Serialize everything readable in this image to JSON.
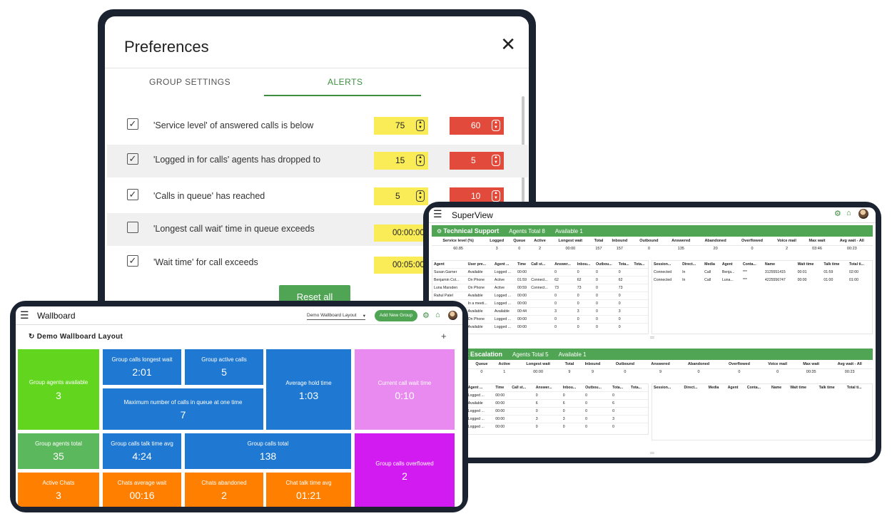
{
  "preferences": {
    "title": "Preferences",
    "close_glyph": "✕",
    "tabs": [
      {
        "label": "GROUP SETTINGS"
      },
      {
        "label": "ALERTS"
      }
    ],
    "alerts": [
      {
        "label": "'Service level' of answered calls is below",
        "checked": true,
        "warn": "75",
        "crit": "60"
      },
      {
        "label": "'Logged in for calls' agents has dropped to",
        "checked": true,
        "warn": "15",
        "crit": "5"
      },
      {
        "label": "'Calls in queue' has reached",
        "checked": true,
        "warn": "5",
        "crit": "10"
      },
      {
        "label": "'Longest call wait' time in queue exceeds",
        "checked": false,
        "warn": "00:00:00"
      },
      {
        "label": "'Wait time' for call exceeds",
        "checked": true,
        "warn": "00:05:00"
      }
    ],
    "check_glyph": "✓",
    "reset_label": "Reset all"
  },
  "superview": {
    "title": "SuperView",
    "groups": [
      {
        "name": "Technical Support",
        "agents_total": "Agents Total 8",
        "available": "Available 1",
        "stat_headers": [
          "Service level (%)",
          "Logged",
          "Queue",
          "Active",
          "Longest wait",
          "Total",
          "Inbound",
          "Outbound",
          "Answered",
          "Abandoned",
          "Overflowed",
          "Voice mail",
          "Max wait",
          "Avg wait - All"
        ],
        "stat_values": [
          "60.85",
          "3",
          "0",
          "2",
          "00:00",
          "157",
          "157",
          "0",
          "135",
          "20",
          "0",
          "2",
          "03:46",
          "00:23"
        ],
        "agent_headers": [
          "Agent",
          "User pre...",
          "Agent ...",
          "Time",
          "Call st...",
          "Answer...",
          "Inbou...",
          "Outbou...",
          "Tota...",
          "Tota..."
        ],
        "agents": [
          [
            "Susan Garner",
            "Available",
            "Logged ...",
            "00:00",
            "",
            "0",
            "0",
            "0",
            "0",
            ""
          ],
          [
            "Benjamin Col...",
            "On Phone",
            "Active",
            "01:59",
            "Connect...",
            "62",
            "62",
            "0",
            "62",
            ""
          ],
          [
            "Luna Marsden",
            "On Phone",
            "Active",
            "00:59",
            "Connect...",
            "73",
            "73",
            "0",
            "73",
            ""
          ],
          [
            "Rahul Patel",
            "Available",
            "Logged ...",
            "00:00",
            "",
            "0",
            "0",
            "0",
            "0",
            ""
          ],
          [
            "",
            "In a meeti...",
            "Logged ...",
            "00:00",
            "",
            "0",
            "0",
            "0",
            "0",
            ""
          ],
          [
            "",
            "Available",
            "Available",
            "00:44",
            "",
            "3",
            "3",
            "0",
            "3",
            ""
          ],
          [
            "",
            "On Phone",
            "Logged ...",
            "00:00",
            "",
            "0",
            "0",
            "0",
            "0",
            ""
          ],
          [
            "",
            "Available",
            "Logged ...",
            "00:00",
            "",
            "0",
            "0",
            "0",
            "0",
            ""
          ]
        ],
        "session_headers": [
          "Session...",
          "Direct...",
          "Media",
          "Agent",
          "Conta...",
          "Name",
          "Wait time",
          "Talk time",
          "Total ti..."
        ],
        "sessions": [
          [
            "Connected",
            "In",
            "Call",
            "Benja...",
            "***",
            "3125551415",
            "00:01",
            "01:59",
            "02:00"
          ],
          [
            "Connected",
            "In",
            "Call",
            "Luna...",
            "***",
            "4225556747",
            "00:00",
            "01:00",
            "01:00"
          ]
        ]
      },
      {
        "name": "al Support Escalation",
        "agents_total": "Agents Total 5",
        "available": "Available 1",
        "stat_headers": [
          "(%)",
          "Logged",
          "Queue",
          "Active",
          "Longest wait",
          "Total",
          "Inbound",
          "Outbound",
          "Answered",
          "Abandoned",
          "Overflowed",
          "Voice mail",
          "Max wait",
          "Avg wait - All"
        ],
        "stat_values": [
          "",
          "1",
          "0",
          "1",
          "00:00",
          "9",
          "9",
          "0",
          "9",
          "0",
          "0",
          "0",
          "00:35",
          "00:23"
        ],
        "agent_headers": [
          "",
          "User pre...",
          "Agent ...",
          "Time",
          "Call st...",
          "Answer...",
          "Inbou...",
          "Outbou...",
          "Tota...",
          "Tota..."
        ],
        "agents": [
          [
            "",
            "Logged Out",
            "Logged ...",
            "00:00",
            "",
            "0",
            "0",
            "0",
            "0",
            ""
          ],
          [
            "",
            "Available",
            "Available",
            "00:00",
            "",
            "6",
            "6",
            "0",
            "6",
            ""
          ],
          [
            "",
            "Logged Out",
            "Logged ...",
            "00:00",
            "",
            "0",
            "0",
            "0",
            "0",
            ""
          ],
          [
            "",
            "In a meeti...",
            "Logged ...",
            "00:00",
            "",
            "3",
            "3",
            "0",
            "3",
            ""
          ],
          [
            "",
            "Available",
            "Logged ...",
            "00:00",
            "",
            "0",
            "0",
            "0",
            "0",
            ""
          ]
        ],
        "session_headers": [
          "Session...",
          "Direct...",
          "Media",
          "Agent",
          "Conta...",
          "Name",
          "Wait time",
          "Talk time",
          "Total ti..."
        ],
        "sessions": []
      }
    ]
  },
  "wallboard": {
    "title": "Wallboard",
    "layout_select": "Demo Wallboard Layout",
    "add_group_label": "Add New Group",
    "layout_title": "Demo Wallboard Layout",
    "plus_glyph": "+",
    "tiles": [
      {
        "label": "Group agents available",
        "value": "3"
      },
      {
        "label": "Group calls longest wait",
        "value": "2:01"
      },
      {
        "label": "Group active calls",
        "value": "5"
      },
      {
        "label": "Average hold time",
        "value": "1:03"
      },
      {
        "label": "Current call wait time",
        "value": "0:10"
      },
      {
        "label": "Maximum number of calls in queue at one time",
        "value": "7"
      },
      {
        "label": "Group agents total",
        "value": "35"
      },
      {
        "label": "Group calls talk time avg",
        "value": "4:24"
      },
      {
        "label": "Group calls total",
        "value": "138"
      },
      {
        "label": "Group calls overflowed",
        "value": "2"
      },
      {
        "label": "Active Chats",
        "value": "3"
      },
      {
        "label": "Chats average wait",
        "value": "00:16"
      },
      {
        "label": "Chats abandoned",
        "value": "2"
      },
      {
        "label": "Chat talk time avg",
        "value": "01:21"
      }
    ]
  },
  "colors": {
    "accent_green": "#4fa553",
    "warn_yellow": "#f9ec57",
    "crit_red": "#e24b3b",
    "tile_blue": "#1f78d1",
    "tile_orange": "#ff8000"
  },
  "icons": [
    "hamburger-icon",
    "close-icon",
    "checkbox-icon",
    "spinner-icon",
    "gear-icon",
    "home-icon",
    "avatar",
    "refresh-icon",
    "chevron-down-icon",
    "plus-icon",
    "drag-handle-icon"
  ]
}
